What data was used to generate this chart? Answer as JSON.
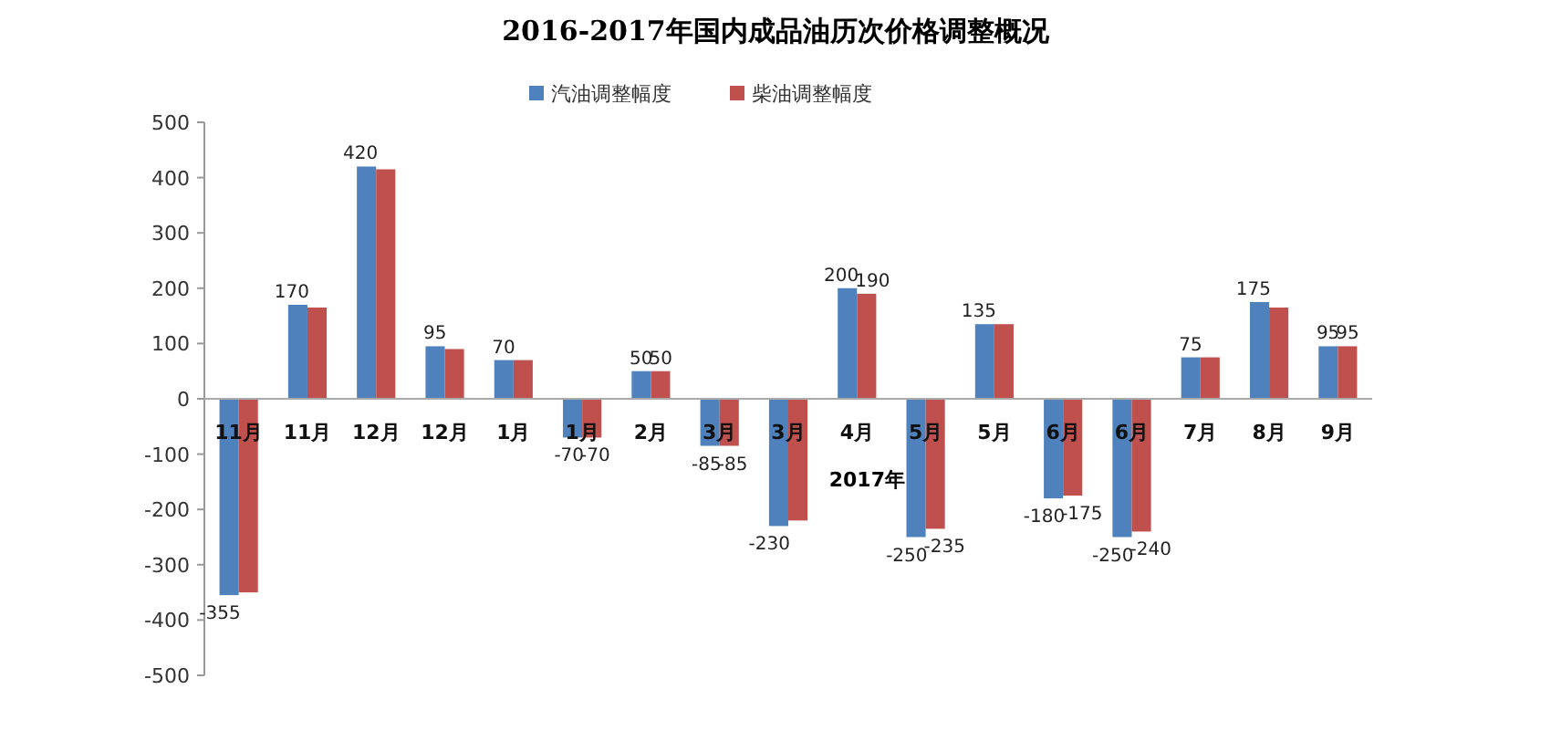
{
  "chart_data": {
    "type": "bar",
    "title": "2016-2017年国内成品油历次价格调整概况",
    "categories": [
      "11月",
      "11月",
      "12月",
      "12月",
      "1月",
      "1月",
      "2月",
      "3月",
      "3月",
      "4月",
      "5月",
      "5月",
      "6月",
      "6月",
      "7月",
      "8月",
      "9月"
    ],
    "series": [
      {
        "name": "汽油调整幅度",
        "color": "#4f81bd",
        "values": [
          -355,
          170,
          420,
          95,
          70,
          -70,
          50,
          -85,
          -230,
          200,
          -250,
          135,
          -180,
          -250,
          75,
          175,
          95
        ],
        "value_labels": [
          "-355",
          "170",
          "420",
          "95",
          "70",
          "-70",
          "50",
          "-85",
          "-230",
          "200",
          "-250",
          "135",
          "-180",
          "-250",
          "75",
          "175",
          "95"
        ]
      },
      {
        "name": "柴油调整幅度",
        "color": "#c0504d",
        "values": [
          -350,
          165,
          415,
          90,
          70,
          -70,
          50,
          -85,
          -220,
          190,
          -235,
          135,
          -175,
          -240,
          75,
          165,
          95
        ],
        "value_labels": [
          null,
          null,
          null,
          null,
          null,
          "-70",
          "50",
          "-85",
          null,
          "190",
          "-235",
          null,
          "-175",
          "-240",
          null,
          null,
          "95"
        ]
      }
    ],
    "ylim": [
      -500,
      500
    ],
    "yticks": [
      -500,
      -400,
      -300,
      -200,
      -100,
      0,
      100,
      200,
      300,
      400,
      500
    ],
    "annotations": [
      "2017年"
    ],
    "legend": "top",
    "grid": false
  }
}
